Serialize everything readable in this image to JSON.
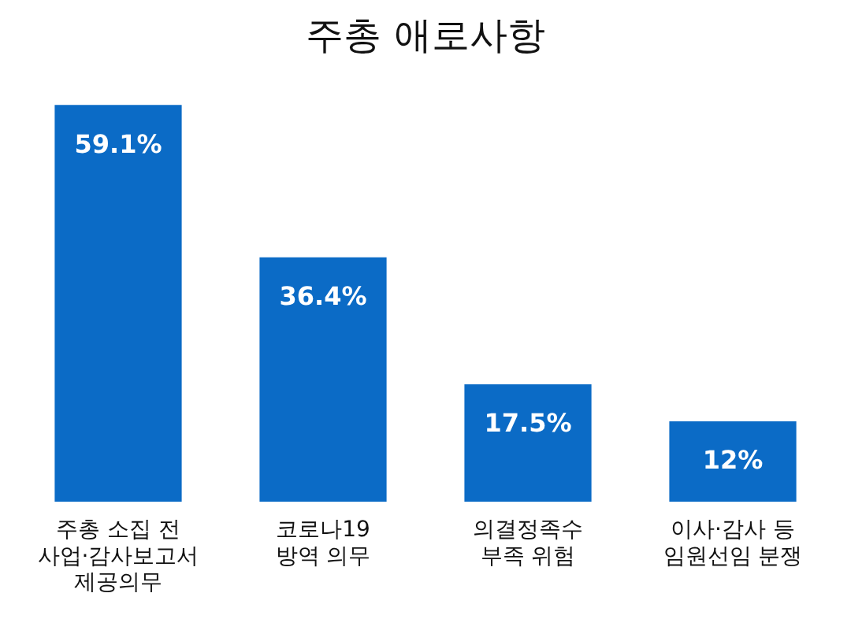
{
  "chart_data": {
    "type": "bar",
    "title": "주총 애로사항",
    "categories": [
      "주총 소집 전\n사업·감사보고서\n제공의무",
      "코로나19\n방역 의무",
      "의결정족수\n부족 위험",
      "이사·감사 등\n임원선임 분쟁"
    ],
    "values": [
      59.1,
      36.4,
      17.5,
      12
    ],
    "value_labels": [
      "59.1%",
      "36.4%",
      "17.5%",
      "12%"
    ],
    "color": "#0b6bc6"
  }
}
